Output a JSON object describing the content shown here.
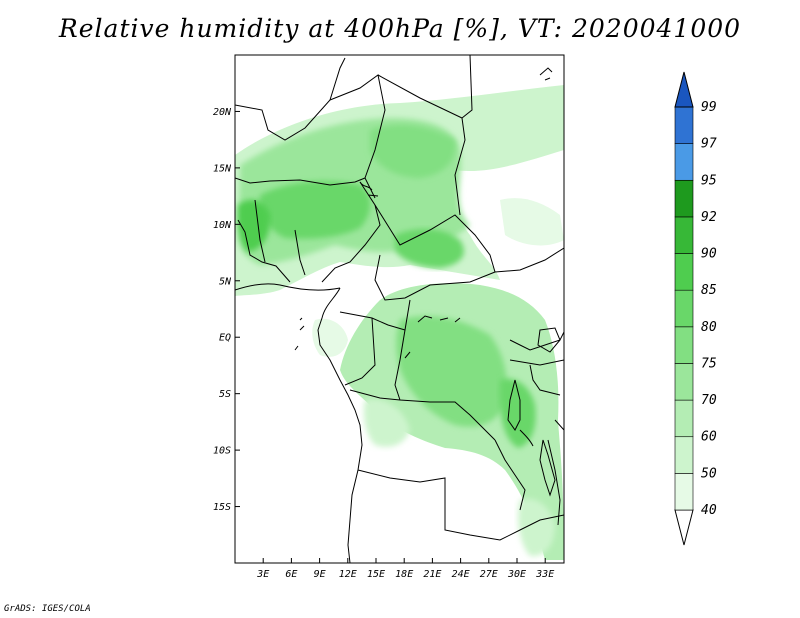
{
  "title": "Relative humidity at 400hPa [%], VT: 2020041000",
  "credit": "GrADS: IGES/COLA",
  "map": {
    "lat_ticks": [
      "20N",
      "15N",
      "10N",
      "5N",
      "EQ",
      "5S",
      "10S",
      "15S"
    ],
    "lat_values": [
      20,
      15,
      10,
      5,
      0,
      -5,
      -10,
      -15
    ],
    "lon_ticks": [
      "3E",
      "6E",
      "9E",
      "12E",
      "15E",
      "18E",
      "21E",
      "24E",
      "27E",
      "30E",
      "33E"
    ],
    "lon_values": [
      3,
      6,
      9,
      12,
      15,
      18,
      21,
      24,
      27,
      30,
      33
    ],
    "lon_range": [
      0,
      35
    ],
    "lat_range": [
      -20,
      25
    ]
  },
  "colorbar": {
    "levels": [
      "40",
      "50",
      "60",
      "70",
      "75",
      "80",
      "85",
      "90",
      "92",
      "95",
      "97",
      "99"
    ],
    "colors": [
      "#ffffff",
      "#e6fae6",
      "#cdf4cd",
      "#b4edb4",
      "#9be69b",
      "#82df82",
      "#69d769",
      "#4fcd4f",
      "#37b837",
      "#1e9a1e",
      "#4a9ae6",
      "#2f73d3",
      "#1a56bf"
    ]
  }
}
